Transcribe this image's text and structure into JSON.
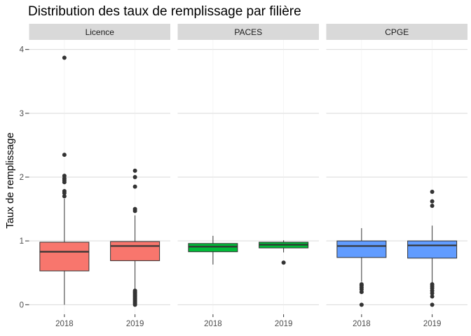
{
  "chart_data": {
    "type": "boxplot",
    "title": "Distribution des taux de remplissage par filière",
    "xlabel": "",
    "ylabel": "Taux de remplissage",
    "ylim": [
      -0.15,
      4.15
    ],
    "yticks": [
      0,
      1,
      2,
      3,
      4
    ],
    "categories": [
      "2018",
      "2019"
    ],
    "legend": "none",
    "facets": [
      {
        "label": "Licence",
        "color": "#F8766D",
        "boxes": [
          {
            "x": "2018",
            "min": 0.0,
            "q1": 0.53,
            "median": 0.83,
            "q3": 0.98,
            "max": 1.66,
            "outliers": [
              1.7,
              1.75,
              1.78,
              1.92,
              1.95,
              1.98,
              2.02,
              2.35,
              3.87
            ]
          },
          {
            "x": "2019",
            "min": 0.24,
            "q1": 0.69,
            "median": 0.92,
            "q3": 0.99,
            "max": 1.4,
            "outliers": [
              0.0,
              0.02,
              0.04,
              0.06,
              0.08,
              0.1,
              0.12,
              0.14,
              0.16,
              0.18,
              0.2,
              0.22,
              1.47,
              1.5,
              1.85,
              2.0,
              2.1
            ]
          }
        ]
      },
      {
        "label": "PACES",
        "color": "#00BA38",
        "boxes": [
          {
            "x": "2018",
            "min": 0.63,
            "q1": 0.83,
            "median": 0.91,
            "q3": 0.96,
            "max": 1.08,
            "outliers": []
          },
          {
            "x": "2019",
            "min": 0.82,
            "q1": 0.89,
            "median": 0.94,
            "q3": 0.98,
            "max": 1.01,
            "outliers": [
              0.66
            ]
          }
        ]
      },
      {
        "label": "CPGE",
        "color": "#619CFF",
        "boxes": [
          {
            "x": "2018",
            "min": 0.36,
            "q1": 0.74,
            "median": 0.92,
            "q3": 1.0,
            "max": 1.2,
            "outliers": [
              0.0,
              0.2,
              0.24,
              0.27,
              0.3,
              0.32
            ]
          },
          {
            "x": "2019",
            "min": 0.34,
            "q1": 0.73,
            "median": 0.93,
            "q3": 1.0,
            "max": 1.24,
            "outliers": [
              0.0,
              0.13,
              0.18,
              0.22,
              0.26,
              0.29,
              0.32,
              1.55,
              1.62,
              1.77
            ]
          }
        ]
      }
    ]
  }
}
